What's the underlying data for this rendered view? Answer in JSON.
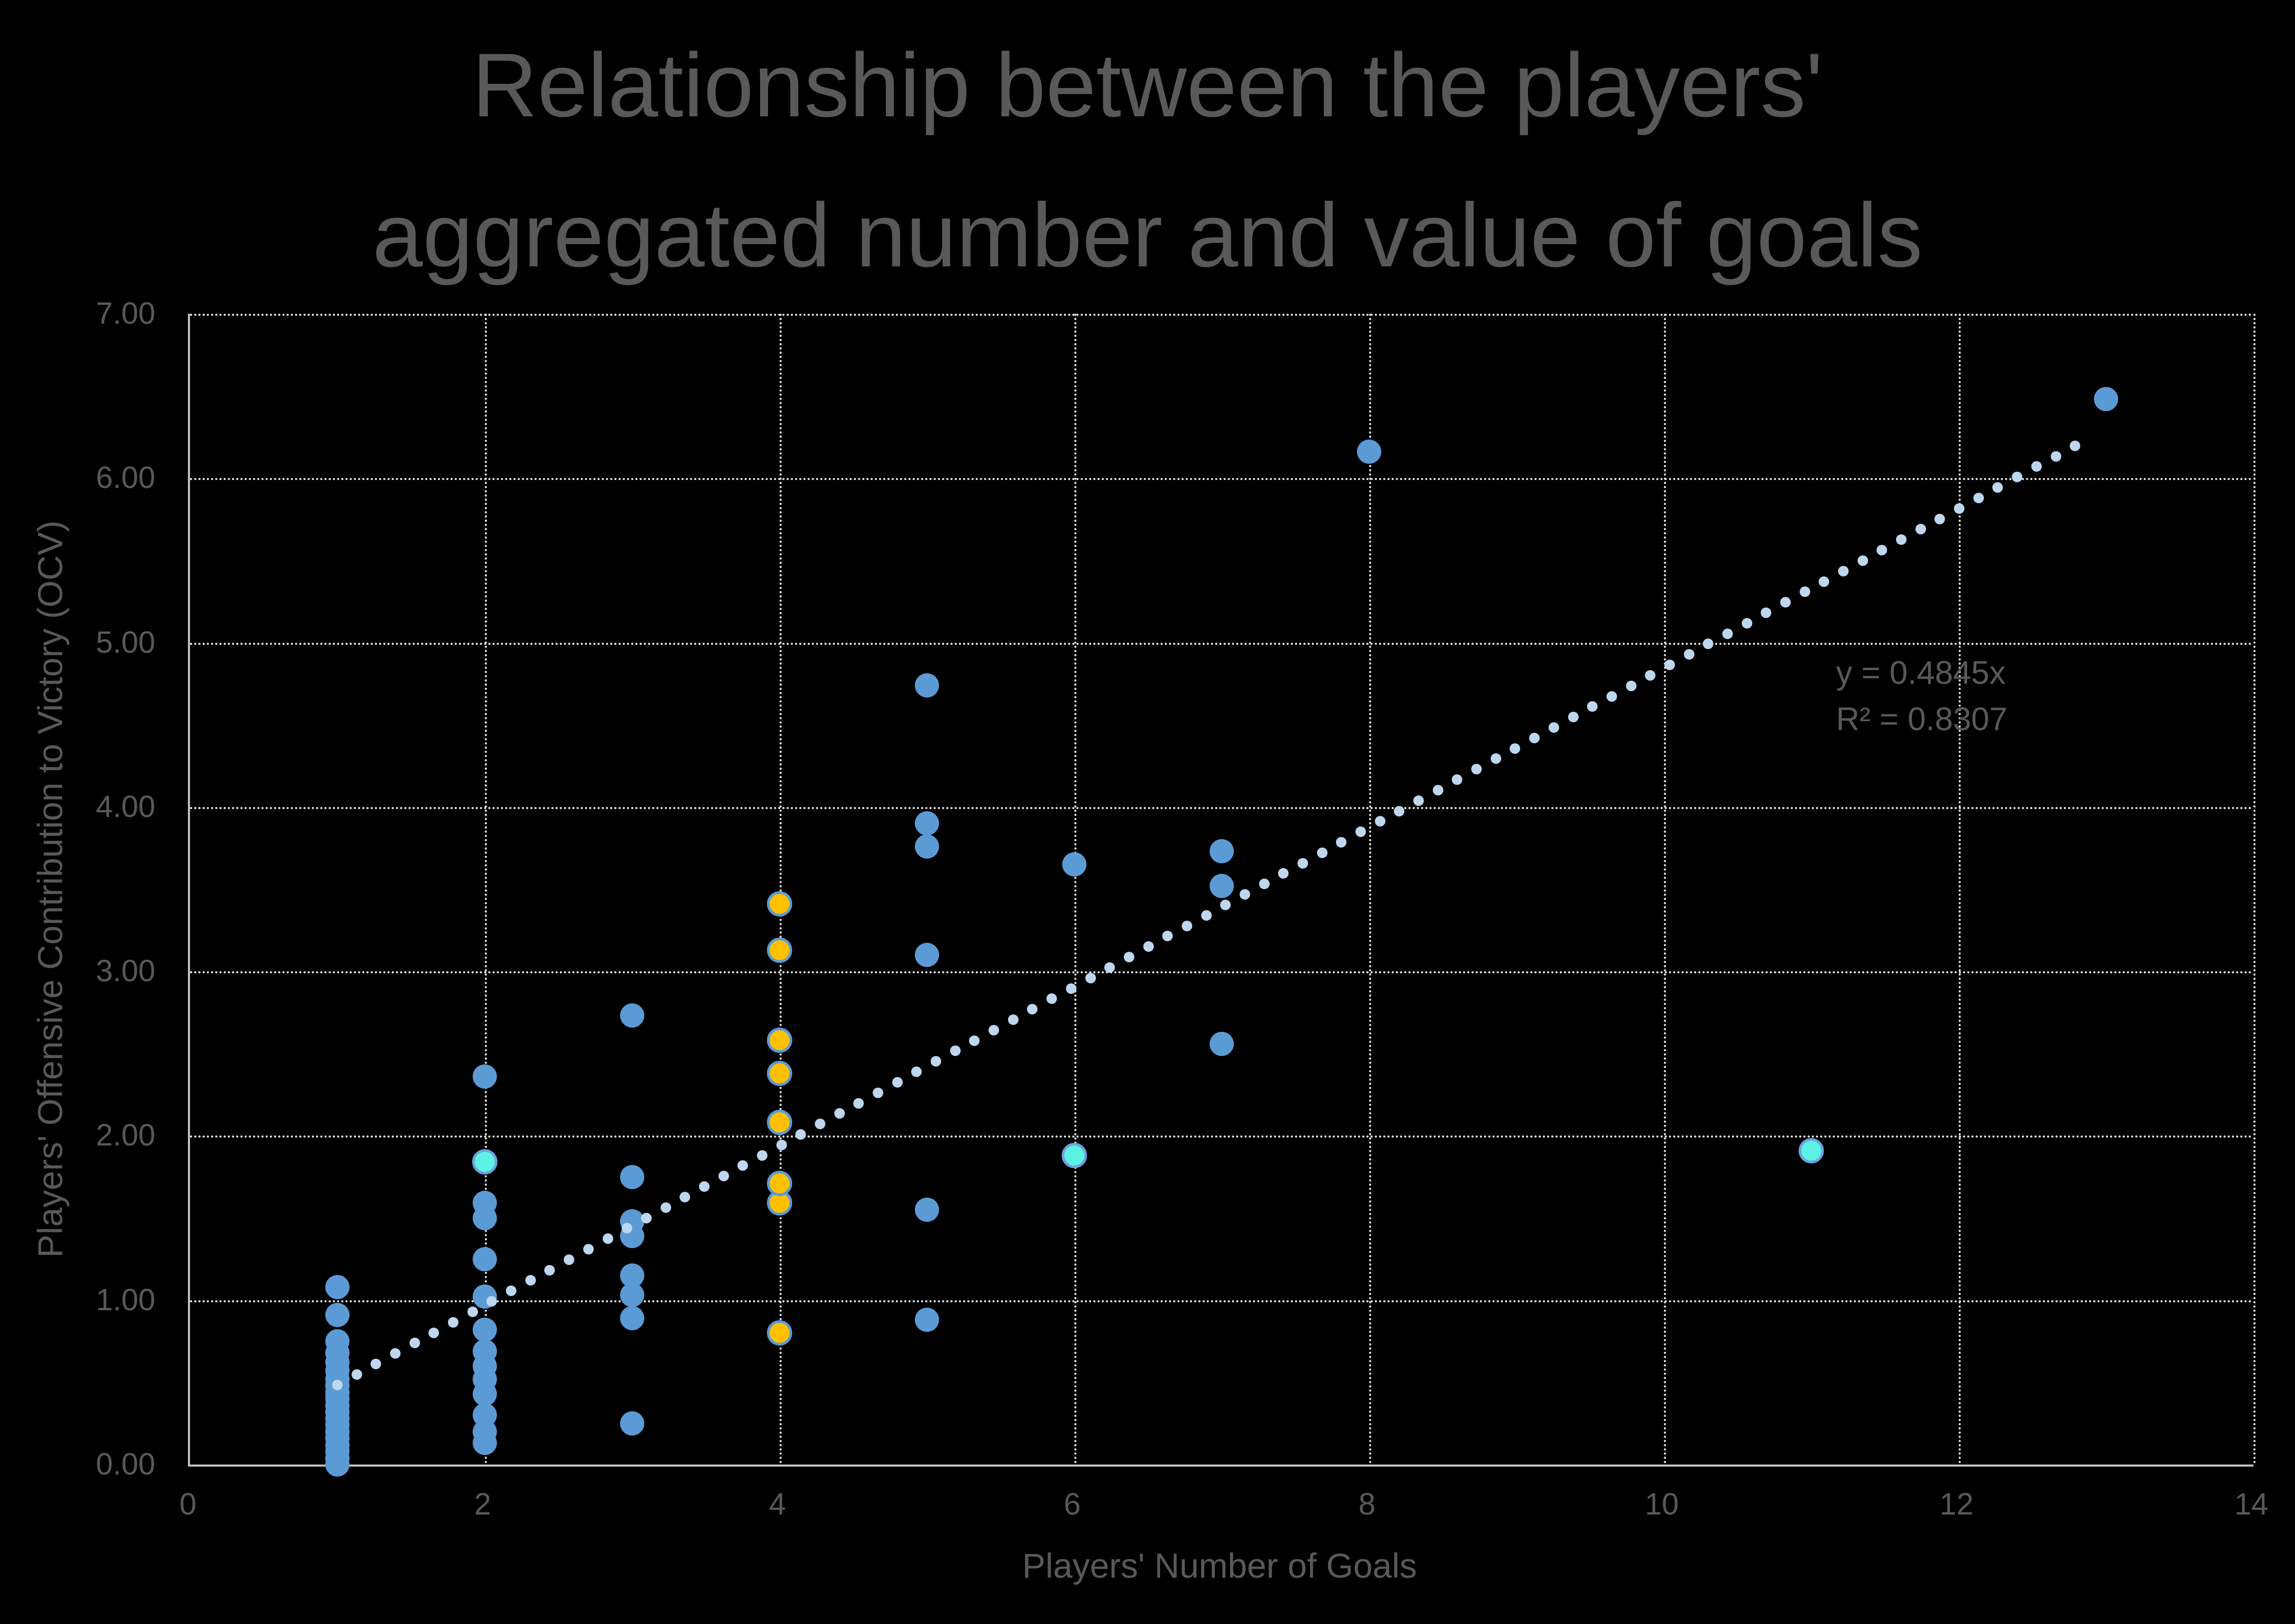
{
  "title": {
    "line1": "Relationship between the players'",
    "line2": "aggregated number and value of goals"
  },
  "chart_data": {
    "type": "scatter",
    "title": "Relationship between the players' aggregated number and value of goals",
    "xlabel": "Players' Number of Goals",
    "ylabel": "Players' Offensive Contribution to Victory (OCV)",
    "xlim": [
      0,
      14
    ],
    "ylim": [
      0,
      7
    ],
    "x_ticks": [
      "0",
      "2",
      "4",
      "6",
      "8",
      "10",
      "12",
      "14"
    ],
    "x_tick_values": [
      0,
      2,
      4,
      6,
      8,
      10,
      12,
      14
    ],
    "y_ticks": [
      "0.00",
      "1.00",
      "2.00",
      "3.00",
      "4.00",
      "5.00",
      "6.00",
      "7.00"
    ],
    "y_tick_values": [
      0,
      1,
      2,
      3,
      4,
      5,
      6,
      7
    ],
    "grid": {
      "horizontal_every": 1,
      "vertical_every": 2,
      "style": "dotted",
      "color": "#E6E6E6"
    },
    "background": "#000000",
    "legend_position": "none",
    "series": [
      {
        "name": "blue-markers",
        "color": "#5B9BD5",
        "points": [
          [
            1,
            0.0
          ],
          [
            1,
            0.04
          ],
          [
            1,
            0.08
          ],
          [
            1,
            0.12
          ],
          [
            1,
            0.16
          ],
          [
            1,
            0.2
          ],
          [
            1,
            0.24
          ],
          [
            1,
            0.28
          ],
          [
            1,
            0.32
          ],
          [
            1,
            0.36
          ],
          [
            1,
            0.4
          ],
          [
            1,
            0.44
          ],
          [
            1,
            0.48
          ],
          [
            1,
            0.52
          ],
          [
            1,
            0.57
          ],
          [
            1,
            0.62
          ],
          [
            1,
            0.68
          ],
          [
            1,
            0.75
          ],
          [
            1,
            0.91
          ],
          [
            1,
            1.08
          ],
          [
            2,
            0.13
          ],
          [
            2,
            0.2
          ],
          [
            2,
            0.3
          ],
          [
            2,
            0.43
          ],
          [
            2,
            0.52
          ],
          [
            2,
            0.6
          ],
          [
            2,
            0.69
          ],
          [
            2,
            0.82
          ],
          [
            2,
            1.02
          ],
          [
            2,
            1.25
          ],
          [
            2,
            1.5
          ],
          [
            2,
            1.59
          ],
          [
            2,
            2.36
          ],
          [
            3,
            0.25
          ],
          [
            3,
            0.89
          ],
          [
            3,
            1.03
          ],
          [
            3,
            1.15
          ],
          [
            3,
            1.39
          ],
          [
            3,
            1.48
          ],
          [
            3,
            1.75
          ],
          [
            3,
            2.73
          ],
          [
            5,
            0.88
          ],
          [
            5,
            1.55
          ],
          [
            5,
            3.1
          ],
          [
            5,
            3.76
          ],
          [
            5,
            3.9
          ],
          [
            5,
            4.74
          ],
          [
            6,
            3.65
          ],
          [
            7,
            2.56
          ],
          [
            7,
            3.52
          ],
          [
            7,
            3.73
          ],
          [
            8,
            6.16
          ],
          [
            13,
            6.48
          ]
        ]
      },
      {
        "name": "orange-markers",
        "color": "#FFC000",
        "border_color": "#5B9BD5",
        "points": [
          [
            4,
            0.8
          ],
          [
            4,
            1.59
          ],
          [
            4,
            1.71
          ],
          [
            4,
            2.08
          ],
          [
            4,
            2.38
          ],
          [
            4,
            2.58
          ],
          [
            4,
            3.13
          ],
          [
            4,
            3.41
          ]
        ]
      },
      {
        "name": "cyan-markers",
        "color": "#5CF2E4",
        "border_color": "#6DA3DC",
        "points": [
          [
            2,
            1.84
          ],
          [
            6,
            1.88
          ],
          [
            11,
            1.91
          ]
        ]
      }
    ],
    "trendline": {
      "slope": 0.4845,
      "intercept": 0,
      "x_start": 1.0,
      "x_end": 12.9,
      "dot_step_x": 0.131,
      "color": "#BDD7EE",
      "style": "dotted",
      "equation_line1": "y = 0.4845x",
      "equation_line2": "R² = 0.8307"
    }
  },
  "colors": {
    "background": "#000000",
    "text": "#595959",
    "axis_line": "#BFBFBF",
    "gridline": "#E6E6E6",
    "marker_blue": "#5B9BD5",
    "marker_orange": "#FFC000",
    "marker_cyan": "#5CF2E4",
    "trendline": "#BDD7EE"
  }
}
